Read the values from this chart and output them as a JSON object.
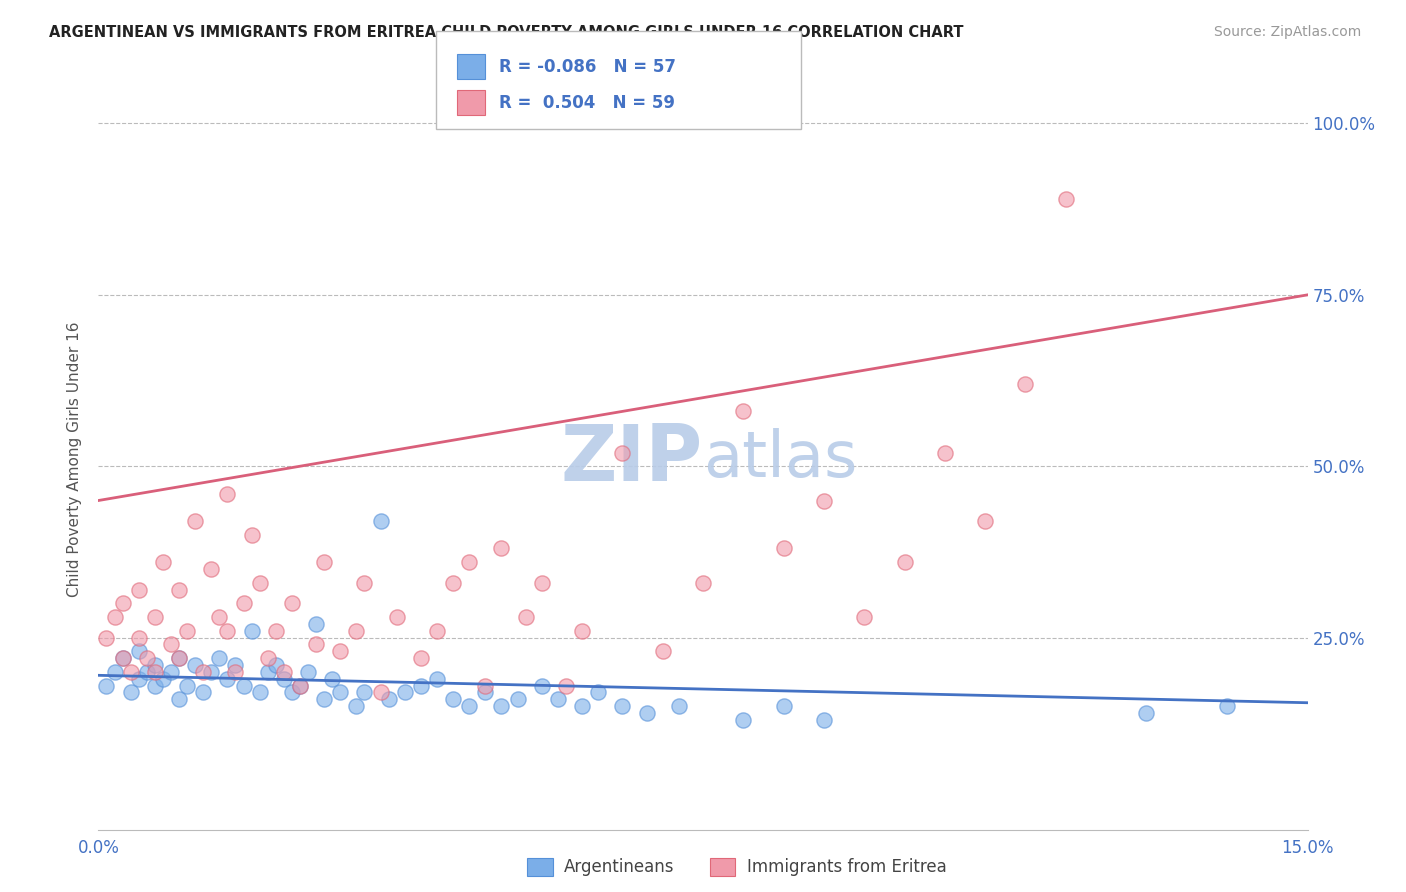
{
  "title": "ARGENTINEAN VS IMMIGRANTS FROM ERITREA CHILD POVERTY AMONG GIRLS UNDER 16 CORRELATION CHART",
  "source": "Source: ZipAtlas.com",
  "ylabel_label": "Child Poverty Among Girls Under 16",
  "right_yticks": [
    0.0,
    0.25,
    0.5,
    0.75,
    1.0
  ],
  "right_yticklabels": [
    "",
    "25.0%",
    "50.0%",
    "75.0%",
    "100.0%"
  ],
  "xmin": 0.0,
  "xmax": 0.15,
  "ymin": -0.03,
  "ymax": 1.05,
  "watermark_zip": "ZIP",
  "watermark_atlas": "atlas",
  "watermark_color": "#ccd9f0",
  "blue_color": "#7baee8",
  "pink_color": "#f09aaa",
  "blue_edge_color": "#5590d8",
  "pink_edge_color": "#e06878",
  "blue_line_color": "#4472c4",
  "pink_line_color": "#d95f7a",
  "dot_size": 120,
  "blue_R": -0.086,
  "blue_N": 57,
  "pink_R": 0.504,
  "pink_N": 59,
  "pink_line_y0": 0.45,
  "pink_line_y1": 0.75,
  "blue_line_y0": 0.195,
  "blue_line_y1": 0.155,
  "blue_x": [
    0.001,
    0.002,
    0.003,
    0.004,
    0.005,
    0.005,
    0.006,
    0.007,
    0.007,
    0.008,
    0.009,
    0.01,
    0.01,
    0.011,
    0.012,
    0.013,
    0.014,
    0.015,
    0.016,
    0.017,
    0.018,
    0.019,
    0.02,
    0.021,
    0.022,
    0.023,
    0.024,
    0.025,
    0.026,
    0.027,
    0.028,
    0.029,
    0.03,
    0.032,
    0.033,
    0.035,
    0.036,
    0.038,
    0.04,
    0.042,
    0.044,
    0.046,
    0.048,
    0.05,
    0.052,
    0.055,
    0.057,
    0.06,
    0.062,
    0.065,
    0.068,
    0.072,
    0.08,
    0.085,
    0.09,
    0.13,
    0.14
  ],
  "blue_y": [
    0.18,
    0.2,
    0.22,
    0.17,
    0.19,
    0.23,
    0.2,
    0.18,
    0.21,
    0.19,
    0.2,
    0.22,
    0.16,
    0.18,
    0.21,
    0.17,
    0.2,
    0.22,
    0.19,
    0.21,
    0.18,
    0.26,
    0.17,
    0.2,
    0.21,
    0.19,
    0.17,
    0.18,
    0.2,
    0.27,
    0.16,
    0.19,
    0.17,
    0.15,
    0.17,
    0.42,
    0.16,
    0.17,
    0.18,
    0.19,
    0.16,
    0.15,
    0.17,
    0.15,
    0.16,
    0.18,
    0.16,
    0.15,
    0.17,
    0.15,
    0.14,
    0.15,
    0.13,
    0.15,
    0.13,
    0.14,
    0.15
  ],
  "pink_x": [
    0.001,
    0.002,
    0.003,
    0.003,
    0.004,
    0.005,
    0.005,
    0.006,
    0.007,
    0.007,
    0.008,
    0.009,
    0.01,
    0.01,
    0.011,
    0.012,
    0.013,
    0.014,
    0.015,
    0.016,
    0.016,
    0.017,
    0.018,
    0.019,
    0.02,
    0.021,
    0.022,
    0.023,
    0.024,
    0.025,
    0.027,
    0.028,
    0.03,
    0.032,
    0.033,
    0.035,
    0.037,
    0.04,
    0.042,
    0.044,
    0.046,
    0.048,
    0.05,
    0.053,
    0.055,
    0.058,
    0.06,
    0.065,
    0.07,
    0.075,
    0.08,
    0.085,
    0.09,
    0.095,
    0.1,
    0.105,
    0.11,
    0.115,
    0.12
  ],
  "pink_y": [
    0.25,
    0.28,
    0.22,
    0.3,
    0.2,
    0.25,
    0.32,
    0.22,
    0.28,
    0.2,
    0.36,
    0.24,
    0.32,
    0.22,
    0.26,
    0.42,
    0.2,
    0.35,
    0.28,
    0.46,
    0.26,
    0.2,
    0.3,
    0.4,
    0.33,
    0.22,
    0.26,
    0.2,
    0.3,
    0.18,
    0.24,
    0.36,
    0.23,
    0.26,
    0.33,
    0.17,
    0.28,
    0.22,
    0.26,
    0.33,
    0.36,
    0.18,
    0.38,
    0.28,
    0.33,
    0.18,
    0.26,
    0.52,
    0.23,
    0.33,
    0.58,
    0.38,
    0.45,
    0.28,
    0.36,
    0.52,
    0.42,
    0.62,
    0.89
  ]
}
